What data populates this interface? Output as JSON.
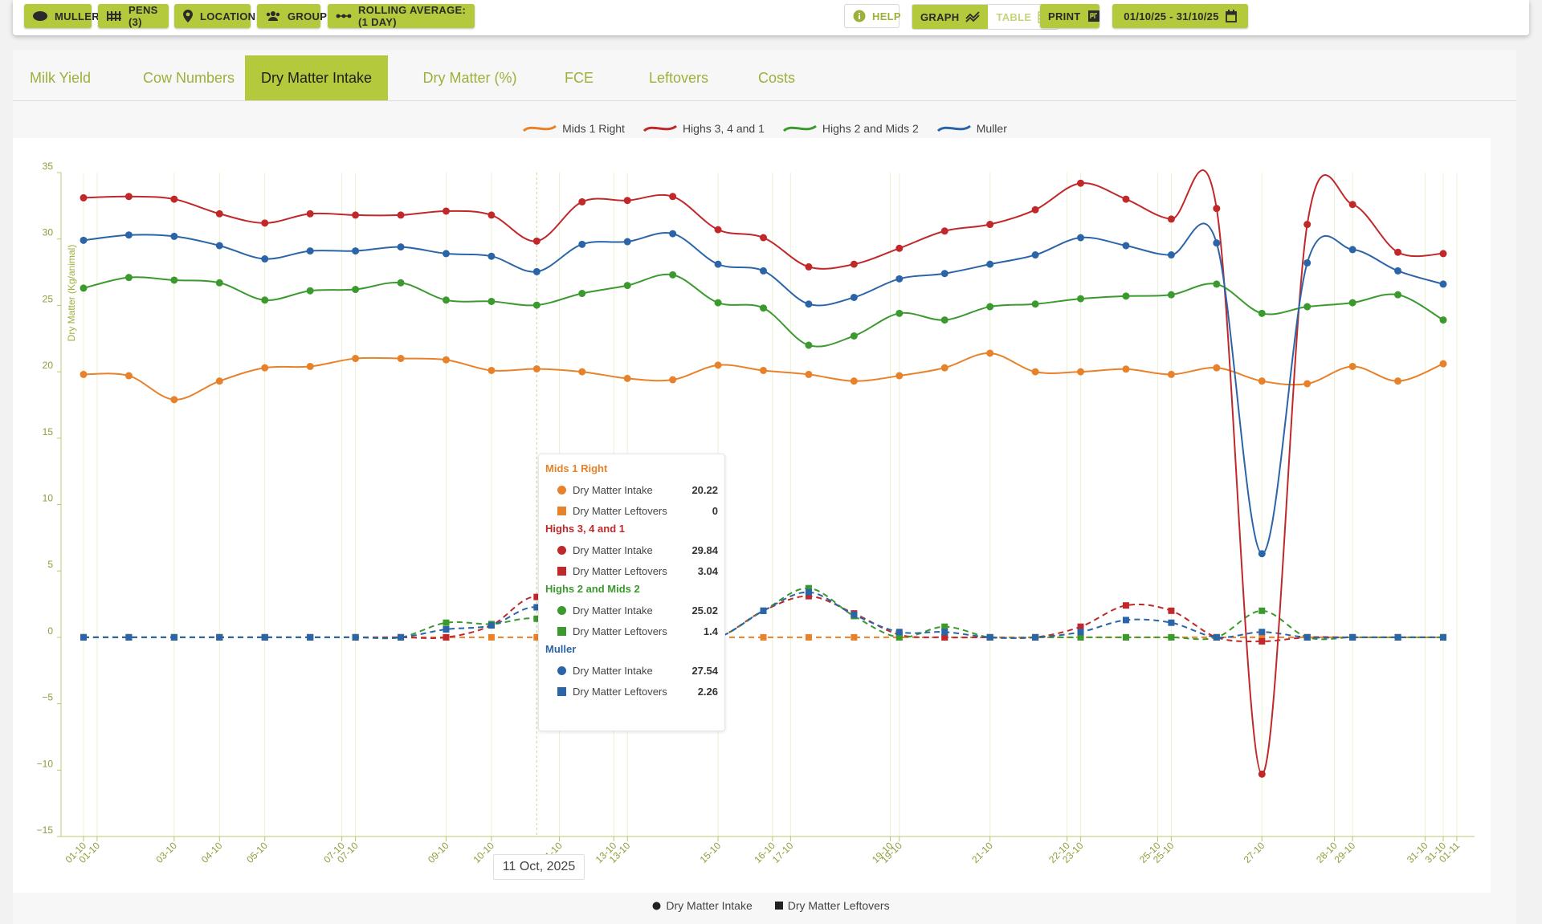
{
  "toolbar": {
    "muller": "MULLER",
    "pens": "PENS (3)",
    "location": "LOCATION",
    "group": "GROUP",
    "rolling": "ROLLING AVERAGE: (1 DAY)",
    "help": "HELP",
    "graph": "GRAPH",
    "table": "TABLE",
    "print": "PRINT",
    "date_range": "01/10/25 - 31/10/25"
  },
  "tabs": [
    "Milk Yield",
    "Cow Numbers",
    "Dry Matter Intake",
    "Dry Matter (%)",
    "FCE",
    "Leftovers",
    "Costs"
  ],
  "active_tab": "Dry Matter Intake",
  "tooltip": {
    "groups": [
      {
        "name": "Mids 1 Right",
        "color": "#e8822a",
        "rows": [
          {
            "label": "Dry Matter Intake",
            "value": "20.22"
          },
          {
            "label": "Dry Matter Leftovers",
            "value": "0"
          }
        ]
      },
      {
        "name": "Highs 3, 4 and 1",
        "color": "#c0282a",
        "rows": [
          {
            "label": "Dry Matter Intake",
            "value": "29.84"
          },
          {
            "label": "Dry Matter Leftovers",
            "value": "3.04"
          }
        ]
      },
      {
        "name": "Highs 2 and Mids 2",
        "color": "#3b9a2e",
        "rows": [
          {
            "label": "Dry Matter Intake",
            "value": "25.02"
          },
          {
            "label": "Dry Matter Leftovers",
            "value": "1.4"
          }
        ]
      },
      {
        "name": "Muller",
        "color": "#2b65a8",
        "rows": [
          {
            "label": "Dry Matter Intake",
            "value": "27.54"
          },
          {
            "label": "Dry Matter Leftovers",
            "value": "2.26"
          }
        ]
      }
    ]
  },
  "axis_tooltip": "11 Oct, 2025",
  "bottom_legend": {
    "intake": "Dry Matter Intake",
    "leftovers": "Dry Matter Leftovers"
  },
  "chart_data": {
    "type": "line",
    "title": "",
    "ylabel": "Dry Matter (Kg/animal)",
    "ylim": [
      -15,
      35
    ],
    "yticks": [
      35,
      30,
      25,
      20,
      15,
      10,
      5,
      0,
      -5,
      -10,
      -15
    ],
    "x": [
      "01-10",
      "02-10",
      "03-10",
      "04-10",
      "05-10",
      "06-10",
      "07-10",
      "08-10",
      "09-10",
      "10-10",
      "11-10",
      "12-10",
      "13-10",
      "14-10",
      "15-10",
      "16-10",
      "17-10",
      "18-10",
      "19-10",
      "20-10",
      "21-10",
      "22-10",
      "23-10",
      "24-10",
      "25-10",
      "26-10",
      "27-10",
      "28-10",
      "29-10",
      "30-10",
      "31-10"
    ],
    "xtick_labels": [
      "01-10",
      "01-10",
      "03-10",
      "04-10",
      "05-10",
      "07-10",
      "07-10",
      "09-10",
      "10-10",
      "11-10",
      "13-10",
      "13-10",
      "15-10",
      "16-10",
      "17-10",
      "19-10",
      "19-10",
      "21-10",
      "22-10",
      "23-10",
      "25-10",
      "25-10",
      "27-10",
      "28-10",
      "29-10",
      "31-10",
      "31-10",
      "01-11"
    ],
    "grid": true,
    "legend": "top",
    "series": [
      {
        "name": "Mids 1 Right",
        "color": "#e8822a",
        "kind": "intake",
        "values": [
          19.8,
          19.7,
          17.9,
          19.3,
          20.3,
          20.4,
          21.0,
          21.0,
          20.9,
          20.1,
          20.22,
          20.0,
          19.5,
          19.4,
          20.5,
          20.1,
          19.8,
          19.3,
          19.7,
          20.3,
          21.4,
          20.0,
          20.0,
          20.2,
          19.8,
          20.3,
          19.3,
          19.1,
          20.4,
          19.3,
          20.6
        ]
      },
      {
        "name": "Highs 3, 4 and 1",
        "color": "#c0282a",
        "kind": "intake",
        "values": [
          33.1,
          33.2,
          33.0,
          31.9,
          31.2,
          31.9,
          31.8,
          31.8,
          32.1,
          31.8,
          29.84,
          32.8,
          32.9,
          33.2,
          30.7,
          30.1,
          27.9,
          28.1,
          29.3,
          30.6,
          31.1,
          32.2,
          34.2,
          33.0,
          31.5,
          32.3,
          -10.3,
          31.1,
          32.6,
          29.0,
          28.9
        ]
      },
      {
        "name": "Highs 2 and Mids 2",
        "color": "#3b9a2e",
        "kind": "intake",
        "values": [
          26.3,
          27.1,
          26.9,
          26.7,
          25.4,
          26.1,
          26.2,
          26.7,
          25.4,
          25.3,
          25.02,
          25.9,
          26.5,
          27.3,
          25.2,
          24.8,
          22.0,
          22.7,
          24.4,
          23.9,
          24.9,
          25.1,
          25.5,
          25.7,
          25.8,
          26.6,
          24.4,
          24.9,
          25.2,
          25.8,
          23.9
        ]
      },
      {
        "name": "Muller",
        "color": "#2b65a8",
        "kind": "intake",
        "values": [
          29.9,
          30.3,
          30.2,
          29.5,
          28.5,
          29.1,
          29.1,
          29.4,
          28.9,
          28.7,
          27.54,
          29.6,
          29.8,
          30.4,
          28.1,
          27.6,
          25.1,
          25.6,
          27.0,
          27.4,
          28.1,
          28.8,
          30.1,
          29.5,
          28.8,
          29.7,
          6.3,
          28.2,
          29.2,
          27.6,
          26.6
        ]
      },
      {
        "name": "Mids 1 Right",
        "color": "#e8822a",
        "kind": "leftovers",
        "values": [
          0,
          0,
          0,
          0,
          0,
          0,
          0,
          0,
          0,
          0,
          0,
          0,
          0,
          0,
          0,
          0,
          0,
          0,
          0,
          0,
          0,
          0,
          0,
          0,
          0,
          0,
          0,
          0,
          0,
          0,
          0
        ]
      },
      {
        "name": "Highs 3, 4 and 1",
        "color": "#c0282a",
        "kind": "leftovers",
        "values": [
          0,
          0,
          0,
          0,
          0,
          0,
          0,
          0,
          0,
          0.9,
          3.04,
          0,
          0,
          0,
          0,
          2.0,
          3.1,
          1.8,
          0.2,
          0,
          0,
          0,
          0.8,
          2.4,
          2.0,
          0,
          -0.3,
          0,
          0,
          0,
          0
        ]
      },
      {
        "name": "Highs 2 and Mids 2",
        "color": "#3b9a2e",
        "kind": "leftovers",
        "values": [
          0,
          0,
          0,
          0,
          0,
          0,
          0,
          0,
          1.1,
          1.0,
          1.4,
          0,
          0,
          0,
          0,
          2.0,
          3.7,
          1.6,
          0,
          0.8,
          0,
          0,
          0,
          0,
          0,
          0,
          2.0,
          0,
          0,
          0,
          0
        ]
      },
      {
        "name": "Muller",
        "color": "#2b65a8",
        "kind": "leftovers",
        "values": [
          0,
          0,
          0,
          0,
          0,
          0,
          0,
          0,
          0.6,
          0.9,
          2.26,
          0,
          0,
          0,
          0,
          2.0,
          3.4,
          1.7,
          0.4,
          0.4,
          0,
          0,
          0.4,
          1.3,
          1.1,
          0,
          0.4,
          0,
          0,
          0,
          0
        ]
      }
    ]
  }
}
